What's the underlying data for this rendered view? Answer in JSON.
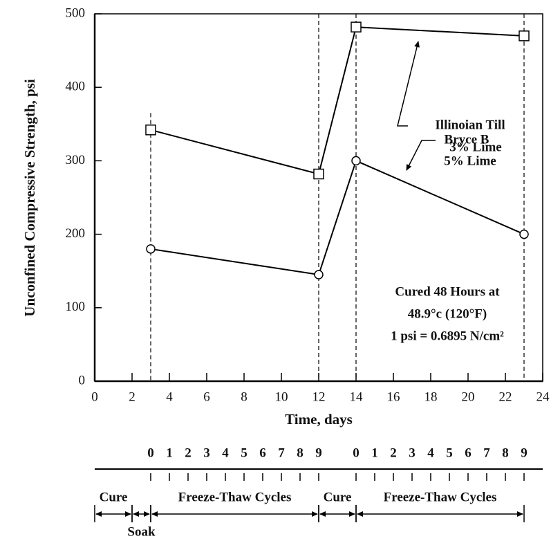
{
  "chart_data": {
    "type": "line",
    "x_label": "Time, days",
    "y_label": "Unconfined Compressive Strength, psi",
    "x": [
      3,
      12,
      14,
      23
    ],
    "series": [
      {
        "name": "Illinoian Till",
        "detail": "3% Lime",
        "marker": "square",
        "color": "#000000",
        "values": [
          342,
          282,
          482,
          470
        ]
      },
      {
        "name": "Bryce B",
        "detail": "5% Lime",
        "marker": "circle",
        "color": "#000000",
        "values": [
          180,
          145,
          300,
          200
        ]
      }
    ],
    "xlim": [
      0,
      24
    ],
    "xticks": [
      0,
      2,
      4,
      6,
      8,
      10,
      12,
      14,
      16,
      18,
      20,
      22,
      24
    ],
    "ylim": [
      0,
      500
    ],
    "yticks": [
      0,
      100,
      200,
      300,
      400,
      500
    ],
    "vlines": [
      3,
      12,
      14,
      23
    ],
    "annotation": [
      "Cured 48 Hours at",
      "48.9°c (120°F)",
      "1 psi = 0.6895 N/cm²"
    ],
    "timeline": {
      "groups": [
        {
          "start": 3,
          "cycles": [
            0,
            1,
            2,
            3,
            4,
            5,
            6,
            7,
            8,
            9
          ]
        },
        {
          "start": 14,
          "cycles": [
            0,
            1,
            2,
            3,
            4,
            5,
            6,
            7,
            8,
            9
          ]
        }
      ],
      "phases": [
        {
          "label": "Cure",
          "from": 0,
          "to": 2
        },
        {
          "label": "Soak",
          "from": 2,
          "to": 3
        },
        {
          "label": "Freeze-Thaw Cycles",
          "from": 3,
          "to": 12
        },
        {
          "label": "Cure",
          "from": 12,
          "to": 14
        },
        {
          "label": "Freeze-Thaw Cycles",
          "from": 14,
          "to": 23
        }
      ]
    }
  }
}
